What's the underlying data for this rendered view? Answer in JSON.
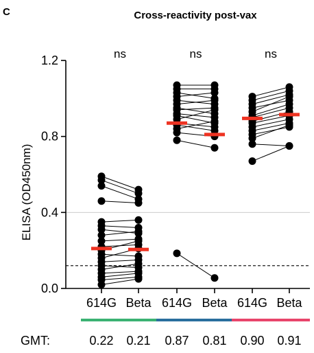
{
  "panel_letter": "C",
  "chart_data": {
    "type": "scatter",
    "title": "Cross-reactivity post-vax",
    "ylabel": "ELISA (OD450nm)",
    "ylim": [
      0,
      1.2
    ],
    "yticks": [
      "0.0",
      "0.4",
      "0.8",
      "1.2"
    ],
    "categories": [
      "614G",
      "Beta",
      "614G",
      "Beta",
      "614G",
      "Beta"
    ],
    "threshold": 0.12,
    "reference_line": 0.4,
    "significance": [
      "ns",
      "ns",
      "ns"
    ],
    "gmt_label": "GMT:",
    "gmt_values": [
      "0.22",
      "0.21",
      "0.87",
      "0.81",
      "0.90",
      "0.91"
    ],
    "group_colors": [
      "#3bb273",
      "#2a6f9e",
      "#e8456b"
    ],
    "median_color": "#ee3322",
    "groups": [
      {
        "median": [
          0.21,
          0.205
        ],
        "pairs": [
          [
            0.59,
            0.52
          ],
          [
            0.57,
            0.5
          ],
          [
            0.54,
            0.47
          ],
          [
            0.46,
            0.45
          ],
          [
            0.35,
            0.36
          ],
          [
            0.33,
            0.32
          ],
          [
            0.31,
            0.29
          ],
          [
            0.28,
            0.3
          ],
          [
            0.25,
            0.26
          ],
          [
            0.22,
            0.23
          ],
          [
            0.2,
            0.25
          ],
          [
            0.18,
            0.17
          ],
          [
            0.16,
            0.21
          ],
          [
            0.14,
            0.15
          ],
          [
            0.12,
            0.11
          ],
          [
            0.1,
            0.13
          ],
          [
            0.08,
            0.09
          ],
          [
            0.06,
            0.08
          ],
          [
            0.045,
            0.06
          ],
          [
            0.02,
            0.05
          ]
        ]
      },
      {
        "median": [
          0.87,
          0.81
        ],
        "pairs": [
          [
            1.07,
            1.07
          ],
          [
            1.05,
            1.05
          ],
          [
            1.03,
            1.0
          ],
          [
            1.01,
            1.03
          ],
          [
            0.99,
            0.97
          ],
          [
            0.97,
            0.99
          ],
          [
            0.95,
            0.92
          ],
          [
            0.94,
            0.95
          ],
          [
            0.92,
            0.9
          ],
          [
            0.91,
            0.87
          ],
          [
            0.89,
            0.94
          ],
          [
            0.87,
            0.85
          ],
          [
            0.86,
            0.83
          ],
          [
            0.84,
            0.88
          ],
          [
            0.82,
            0.8
          ],
          [
            0.78,
            0.74
          ],
          [
            0.185,
            0.055
          ]
        ]
      },
      {
        "median": [
          0.895,
          0.915
        ],
        "pairs": [
          [
            1.01,
            1.06
          ],
          [
            0.99,
            1.04
          ],
          [
            0.97,
            1.02
          ],
          [
            0.95,
            0.99
          ],
          [
            0.93,
            1.01
          ],
          [
            0.91,
            0.97
          ],
          [
            0.9,
            0.95
          ],
          [
            0.88,
            0.93
          ],
          [
            0.87,
            0.91
          ],
          [
            0.85,
            0.89
          ],
          [
            0.83,
            0.87
          ],
          [
            0.81,
            0.85
          ],
          [
            0.79,
            0.86
          ],
          [
            0.76,
            0.75
          ],
          [
            0.67,
            0.75
          ]
        ]
      }
    ]
  }
}
